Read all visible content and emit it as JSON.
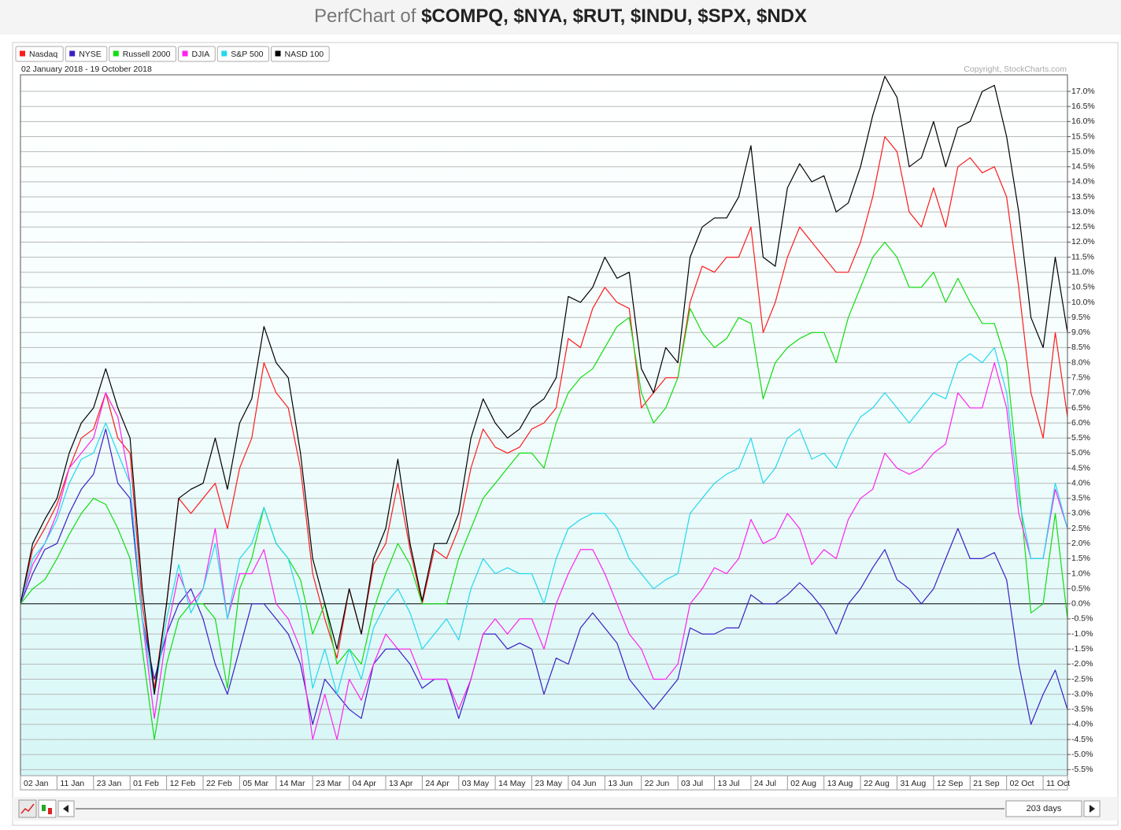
{
  "chart_data": {
    "type": "line",
    "title": {
      "prefix": "PerfChart of",
      "symbols": "$COMPQ, $NYA, $RUT, $INDU, $SPX, $NDX"
    },
    "date_range": "02 January 2018 - 19 October 2018",
    "copyright": "Copyright, StockCharts.com",
    "period": "203 days",
    "legend": "top-left",
    "grid": true,
    "categories": [
      "02 Jan",
      null,
      null,
      "11 Jan",
      null,
      null,
      "23 Jan",
      null,
      null,
      "01 Feb",
      null,
      null,
      "12 Feb",
      null,
      null,
      "22 Feb",
      null,
      null,
      "05 Mar",
      null,
      null,
      "14 Mar",
      null,
      null,
      "23 Mar",
      null,
      null,
      "04 Apr",
      null,
      null,
      "13 Apr",
      null,
      null,
      "24 Apr",
      null,
      null,
      "03 May",
      null,
      null,
      "14 May",
      null,
      null,
      "23 May",
      null,
      null,
      "04 Jun",
      null,
      null,
      "13 Jun",
      null,
      null,
      "22 Jun",
      null,
      null,
      "03 Jul",
      null,
      null,
      "13 Jul",
      null,
      null,
      "24 Jul",
      null,
      null,
      "02 Aug",
      null,
      null,
      "13 Aug",
      null,
      null,
      "22 Aug",
      null,
      null,
      "31 Aug",
      null,
      null,
      "12 Sep",
      null,
      null,
      "21 Sep",
      null,
      null,
      "02 Oct",
      null,
      null,
      "11 Oct",
      null,
      null
    ],
    "ylim": [
      -5.7,
      17.55
    ],
    "yticks": [
      {
        "value": -5.5,
        "label": "-5.5%"
      },
      {
        "value": -5,
        "label": "-5.0%"
      },
      {
        "value": -4.5,
        "label": "-4.5%"
      },
      {
        "value": -4,
        "label": "-4.0%"
      },
      {
        "value": -3.5,
        "label": "-3.5%"
      },
      {
        "value": -3,
        "label": "-3.0%"
      },
      {
        "value": -2.5,
        "label": "-2.5%"
      },
      {
        "value": -2,
        "label": "-2.0%"
      },
      {
        "value": -1.5,
        "label": "-1.5%"
      },
      {
        "value": -1,
        "label": "-1.0%"
      },
      {
        "value": -0.5,
        "label": "-0.5%"
      },
      {
        "value": 0,
        "label": "0.0%"
      },
      {
        "value": 0.5,
        "label": "0.5%"
      },
      {
        "value": 1,
        "label": "1.0%"
      },
      {
        "value": 1.5,
        "label": "1.5%"
      },
      {
        "value": 2,
        "label": "2.0%"
      },
      {
        "value": 2.5,
        "label": "2.5%"
      },
      {
        "value": 3,
        "label": "3.0%"
      },
      {
        "value": 3.5,
        "label": "3.5%"
      },
      {
        "value": 4,
        "label": "4.0%"
      },
      {
        "value": 4.5,
        "label": "4.5%"
      },
      {
        "value": 5,
        "label": "5.0%"
      },
      {
        "value": 5.5,
        "label": "5.5%"
      },
      {
        "value": 6,
        "label": "6.0%"
      },
      {
        "value": 6.5,
        "label": "6.5%"
      },
      {
        "value": 7,
        "label": "7.0%"
      },
      {
        "value": 7.5,
        "label": "7.5%"
      },
      {
        "value": 8,
        "label": "8.0%"
      },
      {
        "value": 8.5,
        "label": "8.5%"
      },
      {
        "value": 9,
        "label": "9.0%"
      },
      {
        "value": 9.5,
        "label": "9.5%"
      },
      {
        "value": 10,
        "label": "10.0%"
      },
      {
        "value": 10.5,
        "label": "10.5%"
      },
      {
        "value": 11,
        "label": "11.0%"
      },
      {
        "value": 11.5,
        "label": "11.5%"
      },
      {
        "value": 12,
        "label": "12.0%"
      },
      {
        "value": 12.5,
        "label": "12.5%"
      },
      {
        "value": 13,
        "label": "13.0%"
      },
      {
        "value": 13.5,
        "label": "13.5%"
      },
      {
        "value": 14,
        "label": "14.0%"
      },
      {
        "value": 14.5,
        "label": "14.5%"
      },
      {
        "value": 15,
        "label": "15.0%"
      },
      {
        "value": 15.5,
        "label": "15.5%"
      },
      {
        "value": 16,
        "label": "16.0%"
      },
      {
        "value": 16.5,
        "label": "16.5%"
      },
      {
        "value": 17,
        "label": "17.0%"
      }
    ],
    "series": [
      {
        "name": "Nasdaq",
        "color": "#ff1a1a",
        "values": [
          0,
          1.8,
          2.5,
          3.3,
          4.5,
          5.5,
          5.8,
          7.0,
          5.5,
          5.0,
          0,
          -2.8,
          0,
          3.5,
          3.0,
          3.5,
          4.0,
          2.5,
          4.5,
          5.5,
          8.0,
          7.0,
          6.5,
          4.5,
          1.0,
          -0.5,
          -1.8,
          0.5,
          -1.0,
          1.3,
          2.0,
          4.0,
          1.8,
          0,
          1.8,
          1.5,
          2.5,
          4.5,
          5.8,
          5.2,
          5,
          5.2,
          5.8,
          6.0,
          6.5,
          8.8,
          8.5,
          9.8,
          10.5,
          10.0,
          9.8,
          6.5,
          7,
          7.5,
          7.5,
          10.0,
          11.2,
          11.0,
          11.5,
          11.5,
          12.5,
          9.0,
          10.0,
          11.5,
          12.5,
          12.0,
          11.5,
          11.0,
          11.0,
          12.0,
          13.5,
          15.5,
          15.0,
          13.0,
          12.5,
          13.8,
          12.5,
          14.5,
          14.8,
          14.3,
          14.5,
          13.5,
          10.5,
          7.0,
          5.5,
          9.0,
          6.2
        ]
      },
      {
        "name": "NYSE",
        "color": "#3a1fc4",
        "values": [
          0,
          1.0,
          1.8,
          2.0,
          3.0,
          3.8,
          4.3,
          5.8,
          4.0,
          3.5,
          -0.5,
          -2.5,
          -1.0,
          0,
          0.5,
          -0.5,
          -2.0,
          -3.0,
          -1.5,
          0,
          0,
          -0.5,
          -1.0,
          -2.0,
          -4.0,
          -2.5,
          -3.0,
          -3.5,
          -3.8,
          -2.0,
          -1.5,
          -1.5,
          -2.0,
          -2.8,
          -2.5,
          -2.5,
          -3.8,
          -2.5,
          -1.0,
          -1.0,
          -1.5,
          -1.3,
          -1.5,
          -3.0,
          -1.8,
          -2.0,
          -0.8,
          -0.3,
          -0.8,
          -1.3,
          -2.5,
          -3.0,
          -3.5,
          -3.0,
          -2.5,
          -0.8,
          -1.0,
          -1.0,
          -0.8,
          -0.8,
          0.3,
          0,
          0,
          0.3,
          0.7,
          0.3,
          -0.2,
          -1.0,
          0,
          0.5,
          1.2,
          1.8,
          0.8,
          0.5,
          0,
          0.5,
          1.5,
          2.5,
          1.5,
          1.5,
          1.7,
          0.8,
          -2.0,
          -4.0,
          -3.0,
          -2.2,
          -3.5
        ]
      },
      {
        "name": "Russell 2000",
        "color": "#11dd11",
        "values": [
          0,
          0.5,
          0.8,
          1.5,
          2.3,
          3.0,
          3.5,
          3.3,
          2.5,
          1.5,
          -1.5,
          -4.5,
          -2.0,
          -0.5,
          0,
          0,
          -0.5,
          -2.8,
          0.5,
          1.5,
          3.2,
          2.0,
          1.5,
          0.8,
          -1.0,
          0,
          -2.0,
          -1.5,
          -2.0,
          -0.2,
          1.0,
          2.0,
          1.3,
          0,
          0,
          0,
          1.5,
          2.5,
          3.5,
          4.0,
          4.5,
          5,
          5.0,
          4.5,
          6.0,
          7.0,
          7.5,
          7.8,
          8.5,
          9.2,
          9.5,
          7.0,
          6.0,
          6.5,
          7.5,
          9.8,
          9.0,
          8.5,
          8.8,
          9.5,
          9.3,
          6.8,
          8.0,
          8.5,
          8.8,
          9.0,
          9.0,
          8.0,
          9.5,
          10.5,
          11.5,
          12.0,
          11.5,
          10.5,
          10.5,
          11.0,
          10.0,
          10.8,
          10.0,
          9.3,
          9.3,
          8.0,
          4.0,
          -0.3,
          0,
          3.0,
          -0.5
        ]
      },
      {
        "name": "DJIA",
        "color": "#ff22ee",
        "values": [
          0,
          1.3,
          2.0,
          3.0,
          4.5,
          5.0,
          5.5,
          7.0,
          6.2,
          4.0,
          -0.5,
          -3.8,
          -1.0,
          1.0,
          0,
          0.5,
          2.5,
          -0.5,
          1.0,
          1.0,
          1.8,
          0,
          -0.5,
          -1.5,
          -4.5,
          -3.0,
          -4.5,
          -2.5,
          -3.2,
          -2.0,
          -1.0,
          -1.5,
          -1.5,
          -2.5,
          -2.5,
          -2.5,
          -3.5,
          -2.5,
          -1.0,
          -0.5,
          -1.0,
          -0.5,
          -0.5,
          -1.5,
          0,
          1.0,
          1.8,
          1.8,
          1.0,
          0,
          -1.0,
          -1.5,
          -2.5,
          -2.5,
          -2.0,
          0,
          0.5,
          1.2,
          1.0,
          1.5,
          2.8,
          2.0,
          2.2,
          3.0,
          2.5,
          1.3,
          1.8,
          1.5,
          2.8,
          3.5,
          3.8,
          5.0,
          4.5,
          4.3,
          4.5,
          5.0,
          5.3,
          7.0,
          6.5,
          6.5,
          8.0,
          6.5,
          3.0,
          1.5,
          1.5,
          3.8,
          2.5
        ]
      },
      {
        "name": "S&P 500",
        "color": "#22d8ee",
        "values": [
          0,
          1.5,
          2.0,
          2.8,
          4.0,
          4.8,
          5.0,
          6.0,
          5.0,
          4.0,
          -0.5,
          -3.0,
          -0.5,
          1.3,
          -0.3,
          0.5,
          2.0,
          -0.5,
          1.5,
          2.0,
          3.2,
          2.0,
          1.5,
          0,
          -2.8,
          -1.5,
          -3.0,
          -1.5,
          -2.5,
          -0.8,
          0,
          0.5,
          -0.3,
          -1.5,
          -1.0,
          -0.5,
          -1.2,
          0.5,
          1.5,
          1.0,
          1.2,
          1.0,
          1.0,
          0,
          1.5,
          2.5,
          2.8,
          3.0,
          3.0,
          2.5,
          1.5,
          1.0,
          0.5,
          0.8,
          1.0,
          3.0,
          3.5,
          4.0,
          4.3,
          4.5,
          5.5,
          4.0,
          4.5,
          5.5,
          5.8,
          4.8,
          5.0,
          4.5,
          5.5,
          6.2,
          6.5,
          7.0,
          6.5,
          6.0,
          6.5,
          7.0,
          6.8,
          8.0,
          8.3,
          8.0,
          8.5,
          7.0,
          3.5,
          1.5,
          1.5,
          4.0,
          2.5
        ]
      },
      {
        "name": "NASD 100",
        "color": "#000000",
        "values": [
          0,
          2.0,
          2.8,
          3.5,
          5.0,
          6.0,
          6.5,
          7.8,
          6.5,
          5.5,
          0.5,
          -3.0,
          0,
          3.5,
          3.8,
          4.0,
          5.5,
          3.8,
          6.0,
          6.8,
          9.2,
          8.0,
          7.5,
          5.0,
          1.5,
          0,
          -1.5,
          0.5,
          -1.0,
          1.5,
          2.5,
          4.8,
          2.0,
          0.1,
          2.0,
          2.0,
          3.0,
          5.5,
          6.8,
          6.0,
          5.5,
          5.8,
          6.5,
          6.8,
          7.5,
          10.2,
          10.0,
          10.5,
          11.5,
          10.8,
          11.0,
          7.8,
          7.0,
          8.5,
          8.0,
          11.5,
          12.5,
          12.8,
          12.8,
          13.5,
          15.2,
          11.5,
          11.2,
          13.8,
          14.6,
          14.0,
          14.2,
          13.0,
          13.3,
          14.5,
          16.2,
          17.5,
          16.8,
          14.5,
          14.8,
          16.0,
          14.5,
          15.8,
          16.0,
          17.0,
          17.2,
          15.5,
          13.0,
          9.5,
          8.5,
          11.5,
          9.0
        ]
      }
    ]
  }
}
